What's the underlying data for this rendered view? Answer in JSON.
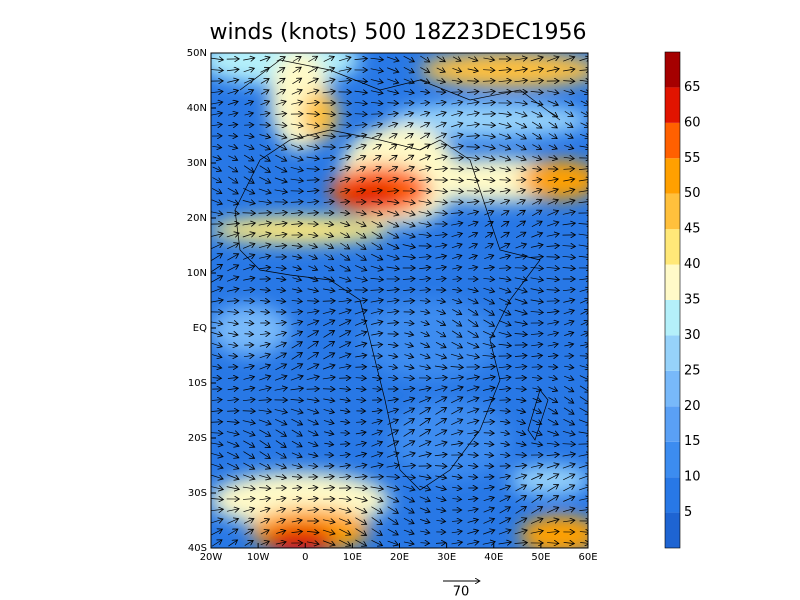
{
  "title": "winds (knots) 500 18Z23DEC1956",
  "map": {
    "lon_ticks": [
      {
        "value": -20,
        "label": "20W"
      },
      {
        "value": -10,
        "label": "10W"
      },
      0,
      {
        "value": 10,
        "label": "10E"
      },
      {
        "value": 20,
        "label": "20E"
      },
      {
        "value": 30,
        "label": "30E"
      },
      {
        "value": 40,
        "label": "40E"
      },
      {
        "value": 50,
        "label": "50E"
      },
      {
        "value": 60,
        "label": "60E"
      }
    ],
    "lat_ticks": [
      {
        "value": 50,
        "label": "50N"
      },
      {
        "value": 40,
        "label": "40N"
      },
      {
        "value": 30,
        "label": "30N"
      },
      {
        "value": 20,
        "label": "20N"
      },
      {
        "value": 10,
        "label": "10N"
      },
      {
        "value": 0,
        "label": "EQ"
      },
      {
        "value": -10,
        "label": "10S"
      },
      {
        "value": -20,
        "label": "20S"
      },
      {
        "value": -30,
        "label": "30S"
      },
      {
        "value": -40,
        "label": "40S"
      }
    ],
    "colorbar": {
      "levels": [
        5,
        10,
        15,
        20,
        25,
        30,
        35,
        40,
        45,
        50,
        55,
        60,
        65
      ],
      "colors": [
        "#1e64d2",
        "#2878e6",
        "#3c8cf0",
        "#5aa0f5",
        "#78b9fa",
        "#96d2fa",
        "#b4f0fa",
        "#fffac8",
        "#ffe878",
        "#ffc03c",
        "#ffa000",
        "#ff6000",
        "#e11400",
        "#a50000"
      ]
    },
    "vector_reference": 70
  }
}
